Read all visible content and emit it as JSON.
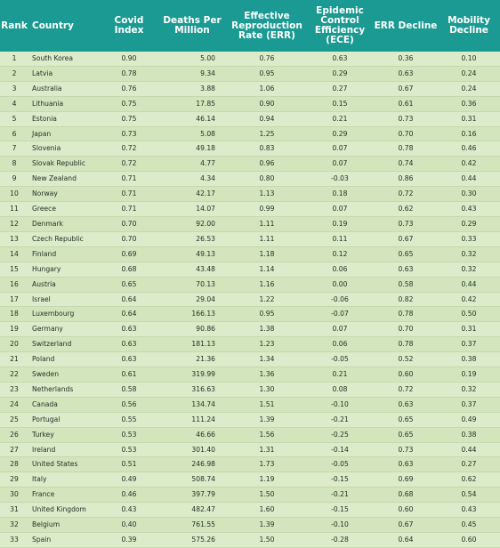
{
  "headers": {
    "rank": "Rank",
    "country": "Country",
    "covid_index": "Covid Index",
    "deaths": "Deaths Per Million",
    "err": "Effective Reproduction Rate (ERR)",
    "ece": "Epidemic Control Efficiency (ECE)",
    "err_decline": "ERR Decline",
    "mobility": "Mobility Decline"
  },
  "rows": [
    {
      "rank": "1",
      "country": "South Korea",
      "covid": "0.90",
      "deaths": "5.00",
      "err": "0.76",
      "ece": "0.63",
      "errd": "0.36",
      "mob": "0.10"
    },
    {
      "rank": "2",
      "country": "Latvia",
      "covid": "0.78",
      "deaths": "9.34",
      "err": "0.95",
      "ece": "0.29",
      "errd": "0.63",
      "mob": "0.24"
    },
    {
      "rank": "3",
      "country": "Australia",
      "covid": "0.76",
      "deaths": "3.88",
      "err": "1.06",
      "ece": "0.27",
      "errd": "0.67",
      "mob": "0.24"
    },
    {
      "rank": "4",
      "country": "Lithuania",
      "covid": "0.75",
      "deaths": "17.85",
      "err": "0.90",
      "ece": "0.15",
      "errd": "0.61",
      "mob": "0.36"
    },
    {
      "rank": "5",
      "country": "Estonia",
      "covid": "0.75",
      "deaths": "46.14",
      "err": "0.94",
      "ece": "0.21",
      "errd": "0.73",
      "mob": "0.31"
    },
    {
      "rank": "6",
      "country": "Japan",
      "covid": "0.73",
      "deaths": "5.08",
      "err": "1.25",
      "ece": "0.29",
      "errd": "0.70",
      "mob": "0.16"
    },
    {
      "rank": "7",
      "country": "Slovenia",
      "covid": "0.72",
      "deaths": "49.18",
      "err": "0.83",
      "ece": "0.07",
      "errd": "0.78",
      "mob": "0.46"
    },
    {
      "rank": "8",
      "country": "Slovak Republic",
      "covid": "0.72",
      "deaths": "4.77",
      "err": "0.96",
      "ece": "0.07",
      "errd": "0.74",
      "mob": "0.42"
    },
    {
      "rank": "9",
      "country": "New Zealand",
      "covid": "0.71",
      "deaths": "4.34",
      "err": "0.80",
      "ece": "-0.03",
      "errd": "0.86",
      "mob": "0.44"
    },
    {
      "rank": "10",
      "country": "Norway",
      "covid": "0.71",
      "deaths": "42.17",
      "err": "1.13",
      "ece": "0.18",
      "errd": "0.72",
      "mob": "0.30"
    },
    {
      "rank": "11",
      "country": "Greece",
      "covid": "0.71",
      "deaths": "14.07",
      "err": "0.99",
      "ece": "0.07",
      "errd": "0.62",
      "mob": "0.43"
    },
    {
      "rank": "12",
      "country": "Denmark",
      "covid": "0.70",
      "deaths": "92.00",
      "err": "1.11",
      "ece": "0.19",
      "errd": "0.73",
      "mob": "0.29"
    },
    {
      "rank": "13",
      "country": "Czech Republic",
      "covid": "0.70",
      "deaths": "26.53",
      "err": "1.11",
      "ece": "0.11",
      "errd": "0.67",
      "mob": "0.33"
    },
    {
      "rank": "14",
      "country": "Finland",
      "covid": "0.69",
      "deaths": "49.13",
      "err": "1.18",
      "ece": "0.12",
      "errd": "0.65",
      "mob": "0.32"
    },
    {
      "rank": "15",
      "country": "Hungary",
      "covid": "0.68",
      "deaths": "43.48",
      "err": "1.14",
      "ece": "0.06",
      "errd": "0.63",
      "mob": "0.32"
    },
    {
      "rank": "16",
      "country": "Austria",
      "covid": "0.65",
      "deaths": "70.13",
      "err": "1.16",
      "ece": "0.00",
      "errd": "0.58",
      "mob": "0.44"
    },
    {
      "rank": "17",
      "country": "Israel",
      "covid": "0.64",
      "deaths": "29.04",
      "err": "1.22",
      "ece": "-0.06",
      "errd": "0.82",
      "mob": "0.42"
    },
    {
      "rank": "18",
      "country": "Luxembourg",
      "covid": "0.64",
      "deaths": "166.13",
      "err": "0.95",
      "ece": "-0.07",
      "errd": "0.78",
      "mob": "0.50"
    },
    {
      "rank": "19",
      "country": "Germany",
      "covid": "0.63",
      "deaths": "90.86",
      "err": "1.38",
      "ece": "0.07",
      "errd": "0.70",
      "mob": "0.31"
    },
    {
      "rank": "20",
      "country": "Switzerland",
      "covid": "0.63",
      "deaths": "181.13",
      "err": "1.23",
      "ece": "0.06",
      "errd": "0.78",
      "mob": "0.37"
    },
    {
      "rank": "21",
      "country": "Poland",
      "covid": "0.63",
      "deaths": "21.36",
      "err": "1.34",
      "ece": "-0.05",
      "errd": "0.52",
      "mob": "0.38"
    },
    {
      "rank": "22",
      "country": "Sweden",
      "covid": "0.61",
      "deaths": "319.99",
      "err": "1.36",
      "ece": "0.21",
      "errd": "0.60",
      "mob": "0.19"
    },
    {
      "rank": "23",
      "country": "Netherlands",
      "covid": "0.58",
      "deaths": "316.63",
      "err": "1.30",
      "ece": "0.08",
      "errd": "0.72",
      "mob": "0.32"
    },
    {
      "rank": "24",
      "country": "Canada",
      "covid": "0.56",
      "deaths": "134.74",
      "err": "1.51",
      "ece": "-0.10",
      "errd": "0.63",
      "mob": "0.37"
    },
    {
      "rank": "25",
      "country": "Portugal",
      "covid": "0.55",
      "deaths": "111.24",
      "err": "1.39",
      "ece": "-0.21",
      "errd": "0.65",
      "mob": "0.49"
    },
    {
      "rank": "26",
      "country": "Turkey",
      "covid": "0.53",
      "deaths": "46.66",
      "err": "1.56",
      "ece": "-0.25",
      "errd": "0.65",
      "mob": "0.38"
    },
    {
      "rank": "27",
      "country": "Ireland",
      "covid": "0.53",
      "deaths": "301.40",
      "err": "1.31",
      "ece": "-0.14",
      "errd": "0.73",
      "mob": "0.44"
    },
    {
      "rank": "28",
      "country": "United States",
      "covid": "0.51",
      "deaths": "246.98",
      "err": "1.73",
      "ece": "-0.05",
      "errd": "0.63",
      "mob": "0.27"
    },
    {
      "rank": "29",
      "country": "Italy",
      "covid": "0.49",
      "deaths": "508.74",
      "err": "1.19",
      "ece": "-0.15",
      "errd": "0.69",
      "mob": "0.62"
    },
    {
      "rank": "30",
      "country": "France",
      "covid": "0.46",
      "deaths": "397.79",
      "err": "1.50",
      "ece": "-0.21",
      "errd": "0.68",
      "mob": "0.54"
    },
    {
      "rank": "31",
      "country": "United Kingdom",
      "covid": "0.43",
      "deaths": "482.47",
      "err": "1.60",
      "ece": "-0.15",
      "errd": "0.60",
      "mob": "0.43"
    },
    {
      "rank": "32",
      "country": "Belgium",
      "covid": "0.40",
      "deaths": "761.55",
      "err": "1.39",
      "ece": "-0.10",
      "errd": "0.67",
      "mob": "0.45"
    },
    {
      "rank": "33",
      "country": "Spain",
      "covid": "0.39",
      "deaths": "575.26",
      "err": "1.50",
      "ece": "-0.28",
      "errd": "0.64",
      "mob": "0.60"
    }
  ]
}
